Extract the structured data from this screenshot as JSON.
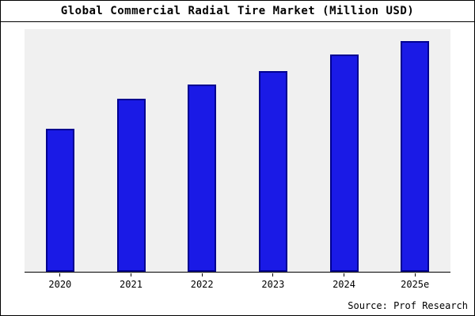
{
  "title": "Global Commercial Radial Tire Market (Million USD)",
  "source": "Source: Prof Research",
  "colors": {
    "bar_fill": "#1a1ae6",
    "bar_border": "#000090",
    "plot_background": "#f0f0f0",
    "frame_border": "#000000"
  },
  "chart_data": {
    "type": "bar",
    "title": "Global Commercial Radial Tire Market (Million USD)",
    "categories": [
      "2020",
      "2021",
      "2022",
      "2023",
      "2024",
      "2025e"
    ],
    "values": [
      62,
      75,
      81,
      87,
      94,
      100
    ],
    "xlabel": "",
    "ylabel": "",
    "ylim": [
      0,
      105
    ],
    "grid": false,
    "legend": "none",
    "y_axis_labels_visible": false,
    "annotation": "Source: Prof Research"
  }
}
